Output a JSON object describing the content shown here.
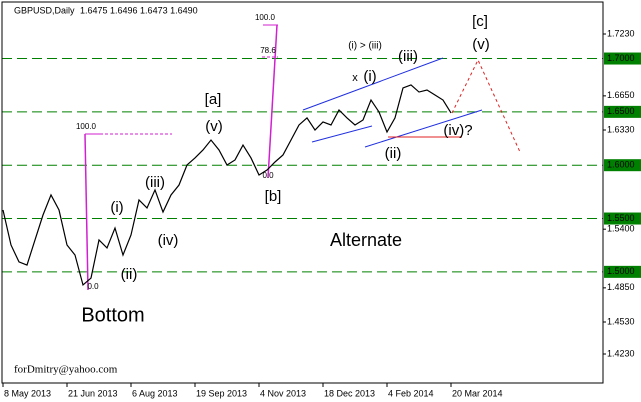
{
  "chart_data": {
    "type": "line",
    "title": "GBPUSD,Daily",
    "subtitle": "1.6475 1.6496 1.6473 1.6490",
    "color": "#000000",
    "categories": [
      "8 May 2013",
      null,
      null,
      null,
      null,
      null,
      null,
      null,
      "21 Jun 2013",
      null,
      null,
      null,
      null,
      null,
      null,
      null,
      "6 Aug 2013",
      null,
      null,
      null,
      null,
      null,
      null,
      null,
      "19 Sep 2013",
      null,
      null,
      null,
      null,
      null,
      null,
      null,
      "4 Nov 2013",
      null,
      null,
      null,
      null,
      null,
      null,
      null,
      "18 Dec 2013",
      null,
      null,
      null,
      null,
      null,
      null,
      null,
      "4 Feb 2014",
      null,
      null,
      null,
      null,
      null,
      null,
      null,
      "20 Mar 2014",
      null,
      null,
      null,
      null,
      null,
      null,
      null,
      null,
      null,
      null,
      null,
      null,
      null,
      null,
      null,
      null,
      null,
      null,
      null
    ],
    "values": [
      1.558,
      1.5252,
      1.5093,
      1.5064,
      1.5299,
      1.5533,
      1.5721,
      1.558,
      1.5252,
      1.5158,
      1.4877,
      1.4942,
      1.5299,
      1.5224,
      1.5411,
      1.5158,
      1.5346,
      1.5674,
      1.5599,
      1.5768,
      1.5561,
      1.5721,
      1.5814,
      1.6002,
      1.6068,
      1.6143,
      1.6236,
      1.6143,
      1.6002,
      1.6049,
      1.6189,
      1.6068,
      1.5908,
      1.5955,
      1.603,
      1.6096,
      1.6236,
      1.6377,
      1.6443,
      1.633,
      1.6405,
      1.6377,
      1.6518,
      1.6443,
      1.6377,
      1.6424,
      1.6611,
      1.6499,
      1.6311,
      1.6443,
      1.6724,
      1.6752,
      1.6686,
      1.6705,
      1.6658,
      1.6611,
      1.649,
      null,
      null,
      null,
      null,
      null,
      null,
      null,
      null,
      null,
      null,
      null,
      null,
      null,
      null,
      null,
      null,
      null,
      null,
      null
    ],
    "ylim": [
      1.3958,
      1.753
    ],
    "yticks": [
      {
        "value": 1.723,
        "label": "1.7230"
      },
      {
        "value": 1.665,
        "label": "1.6650"
      },
      {
        "value": 1.633,
        "label": "1.6330"
      },
      {
        "value": 1.54,
        "label": "1.5400"
      },
      {
        "value": 1.485,
        "label": "1.4850"
      },
      {
        "value": 1.453,
        "label": "1.4530"
      },
      {
        "value": 1.423,
        "label": "1.4230"
      }
    ],
    "levels": [
      {
        "value": 1.7,
        "label": "1.7000"
      },
      {
        "value": 1.65,
        "label": "1.6500"
      },
      {
        "value": 1.6,
        "label": "1.6000"
      },
      {
        "value": 1.55,
        "label": "1.5500"
      },
      {
        "value": 1.5,
        "label": "1.5000"
      }
    ],
    "level_color": "#008000",
    "annotations": [
      {
        "text": "[c]",
        "color": "#2e7d32"
      },
      {
        "text": "(v)",
        "color": "#3030d0"
      },
      {
        "text": "(i) > (iii)",
        "color": "#3030d0"
      },
      {
        "text": "(iii)",
        "color": "#3030d0"
      },
      {
        "text": "x",
        "color": "#3030d0"
      },
      {
        "text": "(i)",
        "color": "#3030d0"
      },
      {
        "text": "[a]",
        "color": "#2e7d32"
      },
      {
        "text": "(v)",
        "color": "#3030d0"
      },
      {
        "text": "(iv)?",
        "color": "#3030d0"
      },
      {
        "text": "(ii)",
        "color": "#3030d0"
      },
      {
        "text": "[b]",
        "color": "#2e7d32"
      },
      {
        "text": "(iii)",
        "color": "#3030d0"
      },
      {
        "text": "(i)",
        "color": "#3030d0"
      },
      {
        "text": "(iv)",
        "color": "#3030d0"
      },
      {
        "text": "Alternate",
        "color": "#1a3fd0"
      },
      {
        "text": "(ii)",
        "color": "#3030d0"
      },
      {
        "text": "Bottom",
        "color": "#1a3fd0"
      },
      {
        "text": "forDmitry@yahoo.com",
        "color": "#000000"
      },
      {
        "text": "100.0",
        "color": "#c000c0"
      },
      {
        "text": "78.6",
        "color": "#c000c0"
      },
      {
        "text": "0.0",
        "color": "#c000c0"
      },
      {
        "text": "100.0",
        "color": "#c000c0"
      },
      {
        "text": "0.0",
        "color": "#c000c0"
      }
    ]
  }
}
